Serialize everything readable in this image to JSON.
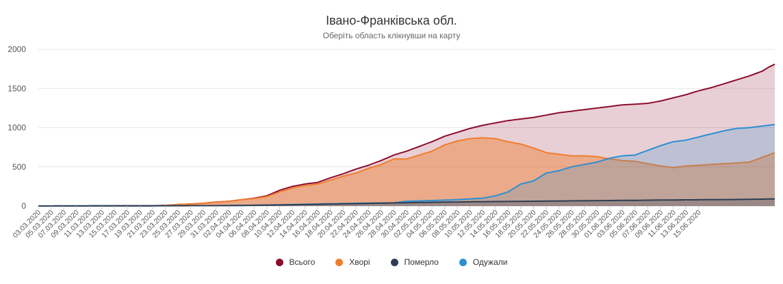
{
  "header": {
    "title": "Івано-Франківська обл.",
    "subtitle": "Оберіть область клікнувши на карту"
  },
  "colors": {
    "total": "#8b0d2c",
    "sick": "#f07d2c",
    "died": "#2b3d52",
    "recovered": "#2b8fd3"
  },
  "chart_data": {
    "type": "area",
    "title": "Івано-Франківська обл.",
    "subtitle": "Оберіть область клікнувши на карту",
    "ylim": [
      0,
      2000
    ],
    "yticks": [
      0,
      500,
      1000,
      1500,
      2000
    ],
    "xtick_labels": [
      "03.03.2020",
      "05.03.2020",
      "07.03.2020",
      "09.03.2020",
      "11.03.2020",
      "13.03.2020",
      "15.03.2020",
      "17.03.2020",
      "19.03.2020",
      "21.03.2020",
      "23.03.2020",
      "25.03.2020",
      "27.03.2020",
      "29.03.2020",
      "31.03.2020",
      "02.04.2020",
      "04.04.2020",
      "06.04.2020",
      "08.04.2020",
      "10.04.2020",
      "12.04.2020",
      "14.04.2020",
      "16.04.2020",
      "18.04.2020",
      "20.04.2020",
      "22.04.2020",
      "24.04.2020",
      "26.04.2020",
      "28.04.2020",
      "30.04.2020",
      "02.05.2020",
      "04.05.2020",
      "06.05.2020",
      "08.05.2020",
      "10.05.2020",
      "12.05.2020",
      "14.05.2020",
      "16.05.2020",
      "18.05.2020",
      "20.05.2020",
      "22.05.2020",
      "24.05.2020",
      "26.05.2020",
      "28.05.2020",
      "30.05.2020",
      "01.06.2020",
      "03.06.2020",
      "05.06.2020",
      "07.06.2020",
      "09.06.2020",
      "11.06.2020",
      "13.06.2020",
      "15.06.2020"
    ],
    "series": [
      {
        "name": "Всього",
        "key": "total",
        "points": [
          [
            0,
            0
          ],
          [
            10,
            0
          ],
          [
            18,
            3
          ],
          [
            20,
            8
          ],
          [
            22,
            18
          ],
          [
            24,
            25
          ],
          [
            26,
            35
          ],
          [
            28,
            50
          ],
          [
            30,
            60
          ],
          [
            32,
            80
          ],
          [
            34,
            100
          ],
          [
            36,
            130
          ],
          [
            38,
            200
          ],
          [
            40,
            250
          ],
          [
            42,
            280
          ],
          [
            44,
            300
          ],
          [
            46,
            360
          ],
          [
            48,
            410
          ],
          [
            50,
            470
          ],
          [
            52,
            520
          ],
          [
            54,
            580
          ],
          [
            56,
            650
          ],
          [
            58,
            700
          ],
          [
            60,
            760
          ],
          [
            62,
            820
          ],
          [
            64,
            890
          ],
          [
            66,
            940
          ],
          [
            68,
            990
          ],
          [
            70,
            1030
          ],
          [
            72,
            1060
          ],
          [
            74,
            1090
          ],
          [
            76,
            1110
          ],
          [
            78,
            1130
          ],
          [
            80,
            1160
          ],
          [
            82,
            1190
          ],
          [
            84,
            1210
          ],
          [
            86,
            1230
          ],
          [
            88,
            1250
          ],
          [
            90,
            1270
          ],
          [
            92,
            1290
          ],
          [
            94,
            1300
          ],
          [
            96,
            1310
          ],
          [
            98,
            1340
          ],
          [
            100,
            1380
          ],
          [
            102,
            1420
          ],
          [
            104,
            1470
          ],
          [
            106,
            1510
          ],
          [
            108,
            1560
          ],
          [
            110,
            1610
          ],
          [
            112,
            1660
          ],
          [
            114,
            1720
          ],
          [
            115,
            1770
          ],
          [
            116,
            1810
          ]
        ]
      },
      {
        "name": "Хворі",
        "key": "sick",
        "points": [
          [
            0,
            0
          ],
          [
            10,
            0
          ],
          [
            18,
            3
          ],
          [
            20,
            8
          ],
          [
            22,
            18
          ],
          [
            24,
            25
          ],
          [
            26,
            35
          ],
          [
            28,
            50
          ],
          [
            30,
            60
          ],
          [
            32,
            80
          ],
          [
            34,
            95
          ],
          [
            36,
            120
          ],
          [
            38,
            180
          ],
          [
            40,
            230
          ],
          [
            42,
            260
          ],
          [
            44,
            280
          ],
          [
            46,
            330
          ],
          [
            48,
            380
          ],
          [
            50,
            420
          ],
          [
            52,
            480
          ],
          [
            54,
            530
          ],
          [
            56,
            600
          ],
          [
            58,
            600
          ],
          [
            60,
            650
          ],
          [
            62,
            700
          ],
          [
            64,
            780
          ],
          [
            66,
            830
          ],
          [
            68,
            860
          ],
          [
            70,
            870
          ],
          [
            72,
            860
          ],
          [
            74,
            820
          ],
          [
            76,
            790
          ],
          [
            78,
            740
          ],
          [
            80,
            680
          ],
          [
            82,
            660
          ],
          [
            84,
            640
          ],
          [
            86,
            640
          ],
          [
            88,
            630
          ],
          [
            90,
            600
          ],
          [
            92,
            580
          ],
          [
            94,
            570
          ],
          [
            96,
            540
          ],
          [
            98,
            510
          ],
          [
            100,
            490
          ],
          [
            102,
            510
          ],
          [
            104,
            520
          ],
          [
            106,
            530
          ],
          [
            108,
            540
          ],
          [
            110,
            550
          ],
          [
            112,
            560
          ],
          [
            114,
            620
          ],
          [
            115,
            650
          ],
          [
            116,
            680
          ]
        ]
      },
      {
        "name": "Померло",
        "key": "died",
        "points": [
          [
            0,
            0
          ],
          [
            30,
            5
          ],
          [
            40,
            15
          ],
          [
            50,
            30
          ],
          [
            60,
            45
          ],
          [
            70,
            55
          ],
          [
            80,
            62
          ],
          [
            90,
            70
          ],
          [
            100,
            77
          ],
          [
            110,
            83
          ],
          [
            116,
            90
          ]
        ]
      },
      {
        "name": "Одужали",
        "key": "recovered",
        "points": [
          [
            0,
            0
          ],
          [
            30,
            5
          ],
          [
            38,
            15
          ],
          [
            44,
            25
          ],
          [
            50,
            35
          ],
          [
            56,
            40
          ],
          [
            58,
            60
          ],
          [
            62,
            70
          ],
          [
            66,
            80
          ],
          [
            70,
            100
          ],
          [
            72,
            130
          ],
          [
            74,
            180
          ],
          [
            76,
            280
          ],
          [
            78,
            320
          ],
          [
            80,
            420
          ],
          [
            82,
            450
          ],
          [
            84,
            500
          ],
          [
            86,
            530
          ],
          [
            88,
            560
          ],
          [
            90,
            610
          ],
          [
            92,
            640
          ],
          [
            94,
            650
          ],
          [
            96,
            710
          ],
          [
            98,
            770
          ],
          [
            100,
            820
          ],
          [
            102,
            840
          ],
          [
            104,
            880
          ],
          [
            106,
            920
          ],
          [
            108,
            960
          ],
          [
            110,
            990
          ],
          [
            112,
            1000
          ],
          [
            114,
            1020
          ],
          [
            115,
            1030
          ],
          [
            116,
            1040
          ]
        ]
      }
    ]
  },
  "legend": {
    "items": [
      {
        "label": "Всього"
      },
      {
        "label": "Хворі"
      },
      {
        "label": "Померло"
      },
      {
        "label": "Одужали"
      }
    ]
  }
}
